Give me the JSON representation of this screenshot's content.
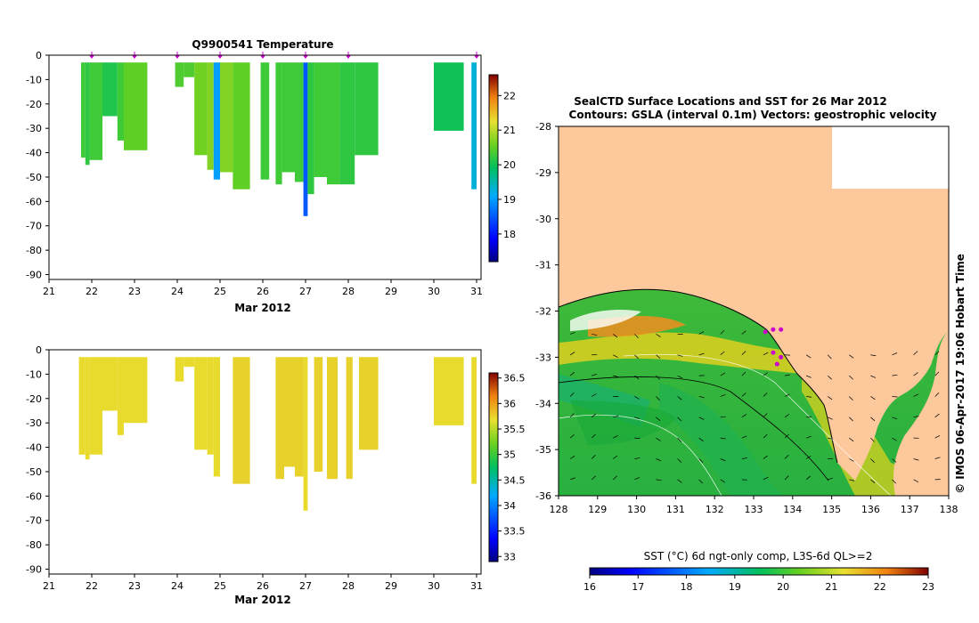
{
  "temperature_panel": {
    "title": "Q9900541  Temperature",
    "xlabel": "Mar 2012",
    "x_ticks": [
      "21",
      "22",
      "23",
      "24",
      "25",
      "26",
      "27",
      "28",
      "29",
      "30",
      "31"
    ],
    "y_ticks": [
      "0",
      "-10",
      "-20",
      "-30",
      "-40",
      "-50",
      "-60",
      "-70",
      "-80",
      "-90"
    ],
    "colorbar_ticks": [
      "22",
      "21",
      "20",
      "19",
      "18"
    ]
  },
  "salinity_panel": {
    "xlabel": "Mar 2012",
    "x_ticks": [
      "21",
      "22",
      "23",
      "24",
      "25",
      "26",
      "27",
      "28",
      "29",
      "30",
      "31"
    ],
    "y_ticks": [
      "0",
      "-10",
      "-20",
      "-30",
      "-40",
      "-50",
      "-60",
      "-70",
      "-80",
      "-90"
    ],
    "colorbar_ticks": [
      "36.5",
      "36",
      "35.5",
      "35",
      "34.5",
      "34",
      "33.5",
      "33"
    ]
  },
  "map_panel": {
    "title_line1": "SealCTD Surface Locations and SST for 26 Mar 2012",
    "title_line2": "Contours: GSLA (interval 0.1m) Vectors: geostrophic velocity",
    "lon_ticks": [
      "128",
      "129",
      "130",
      "131",
      "132",
      "133",
      "134",
      "135",
      "136",
      "137",
      "138"
    ],
    "lat_ticks": [
      "-28",
      "-29",
      "-30",
      "-31",
      "-32",
      "-33",
      "-34",
      "-35",
      "-36"
    ],
    "side_label": "© IMOS 06-Apr-2017 19:06 Hobart Time",
    "colorbar_label": "SST (°C) 6d ngt-only comp, L3S-6d QL>=2",
    "colorbar_ticks": [
      "16",
      "17",
      "18",
      "19",
      "20",
      "21",
      "22",
      "23"
    ]
  },
  "colors": {
    "land": "#fcc89c",
    "temp_fill": "#10c690",
    "sal_fill": "#f2960a",
    "marker": "#cc00cc"
  },
  "chart_data": [
    {
      "type": "heatmap",
      "name": "temperature_profiles",
      "title": "Q9900541  Temperature",
      "xlabel": "Mar 2012",
      "ylabel": "",
      "xlim": [
        21,
        31
      ],
      "ylim": [
        -92,
        0
      ],
      "colorbar": {
        "range": [
          17.2,
          22.6
        ],
        "unit": "°C"
      },
      "profiles": [
        {
          "start": 21.75,
          "end": 21.85,
          "depth": -42,
          "value": 20.3
        },
        {
          "start": 21.85,
          "end": 21.95,
          "depth": -45,
          "value": 20.2
        },
        {
          "start": 21.95,
          "end": 22.25,
          "depth": -43,
          "value": 20.3
        },
        {
          "start": 22.25,
          "end": 22.6,
          "depth": -25,
          "value": 20.1
        },
        {
          "start": 22.6,
          "end": 22.75,
          "depth": -35,
          "value": 20.3
        },
        {
          "start": 22.75,
          "end": 23.3,
          "depth": -39,
          "value": 20.5
        },
        {
          "start": 23.95,
          "end": 24.15,
          "depth": -13,
          "value": 20.4
        },
        {
          "start": 24.15,
          "end": 24.4,
          "depth": -9,
          "value": 20.4
        },
        {
          "start": 24.4,
          "end": 24.7,
          "depth": -41,
          "value": 20.6
        },
        {
          "start": 24.7,
          "end": 24.85,
          "depth": -47,
          "value": 20.7
        },
        {
          "start": 24.85,
          "end": 25.0,
          "depth": -51,
          "value": 19.0
        },
        {
          "start": 25.0,
          "end": 25.3,
          "depth": -48,
          "value": 20.7
        },
        {
          "start": 25.3,
          "end": 25.7,
          "depth": -55,
          "value": 20.5
        },
        {
          "start": 25.95,
          "end": 26.15,
          "depth": -51,
          "value": 20.3
        },
        {
          "start": 26.3,
          "end": 26.45,
          "depth": -53,
          "value": 20.3
        },
        {
          "start": 26.45,
          "end": 26.75,
          "depth": -48,
          "value": 20.3
        },
        {
          "start": 26.75,
          "end": 26.95,
          "depth": -52,
          "value": 20.3
        },
        {
          "start": 26.95,
          "end": 27.05,
          "depth": -66,
          "value": 18.5
        },
        {
          "start": 27.05,
          "end": 27.2,
          "depth": -57,
          "value": 20.2
        },
        {
          "start": 27.2,
          "end": 27.5,
          "depth": -50,
          "value": 20.3
        },
        {
          "start": 27.5,
          "end": 27.8,
          "depth": -53,
          "value": 20.3
        },
        {
          "start": 27.8,
          "end": 28.15,
          "depth": -53,
          "value": 20.2
        },
        {
          "start": 28.15,
          "end": 28.7,
          "depth": -41,
          "value": 20.2
        },
        {
          "start": 30.0,
          "end": 30.7,
          "depth": -31,
          "value": 20.0
        },
        {
          "start": 30.88,
          "end": 31.0,
          "depth": -55,
          "value": 19.3
        }
      ],
      "markers": [
        22,
        23,
        24,
        25,
        26,
        27,
        28,
        31
      ]
    },
    {
      "type": "heatmap",
      "name": "salinity_profiles",
      "title": "",
      "xlabel": "Mar 2012",
      "ylabel": "",
      "xlim": [
        21,
        31
      ],
      "ylim": [
        -92,
        0
      ],
      "colorbar": {
        "range": [
          32.9,
          36.6
        ],
        "unit": "PSU"
      },
      "profiles": [
        {
          "start": 21.7,
          "end": 21.85,
          "depth": -43,
          "value": 35.7
        },
        {
          "start": 21.85,
          "end": 21.95,
          "depth": -45,
          "value": 35.7
        },
        {
          "start": 21.95,
          "end": 22.25,
          "depth": -43,
          "value": 35.7
        },
        {
          "start": 22.25,
          "end": 22.6,
          "depth": -25,
          "value": 35.7
        },
        {
          "start": 22.6,
          "end": 22.75,
          "depth": -35,
          "value": 35.7
        },
        {
          "start": 22.75,
          "end": 23.3,
          "depth": -30,
          "value": 35.7
        },
        {
          "start": 23.95,
          "end": 24.15,
          "depth": -13,
          "value": 35.7
        },
        {
          "start": 24.15,
          "end": 24.4,
          "depth": -7,
          "value": 35.7
        },
        {
          "start": 24.4,
          "end": 24.7,
          "depth": -41,
          "value": 35.7
        },
        {
          "start": 24.7,
          "end": 24.85,
          "depth": -43,
          "value": 35.7
        },
        {
          "start": 24.85,
          "end": 25.0,
          "depth": -52,
          "value": 35.7
        },
        {
          "start": 25.3,
          "end": 25.7,
          "depth": -55,
          "value": 35.75
        },
        {
          "start": 26.3,
          "end": 26.5,
          "depth": -53,
          "value": 35.75
        },
        {
          "start": 26.5,
          "end": 26.75,
          "depth": -48,
          "value": 35.75
        },
        {
          "start": 26.75,
          "end": 26.95,
          "depth": -52,
          "value": 35.75
        },
        {
          "start": 26.95,
          "end": 27.05,
          "depth": -66,
          "value": 35.7
        },
        {
          "start": 27.2,
          "end": 27.4,
          "depth": -50,
          "value": 35.75
        },
        {
          "start": 27.5,
          "end": 27.75,
          "depth": -53,
          "value": 35.75
        },
        {
          "start": 27.95,
          "end": 28.1,
          "depth": -53,
          "value": 35.75
        },
        {
          "start": 28.25,
          "end": 28.7,
          "depth": -41,
          "value": 35.75
        },
        {
          "start": 30.0,
          "end": 30.7,
          "depth": -31,
          "value": 35.7
        },
        {
          "start": 30.88,
          "end": 31.0,
          "depth": -55,
          "value": 35.7
        }
      ]
    },
    {
      "type": "heatmap",
      "name": "sst_map",
      "title": "SealCTD Surface Locations and SST for 26 Mar 2012",
      "xlabel": "",
      "ylabel": "",
      "xlim": [
        128,
        138
      ],
      "ylim": [
        -36,
        -28
      ],
      "colorbar": {
        "range": [
          16,
          23
        ],
        "unit": "°C"
      },
      "seal_locations": [
        {
          "lon": 133.3,
          "lat": -32.45
        },
        {
          "lon": 133.5,
          "lat": -32.4
        },
        {
          "lon": 133.7,
          "lat": -32.4
        },
        {
          "lon": 133.5,
          "lat": -32.9
        },
        {
          "lon": 133.7,
          "lat": -33.0
        },
        {
          "lon": 133.6,
          "lat": -33.15
        }
      ]
    }
  ]
}
